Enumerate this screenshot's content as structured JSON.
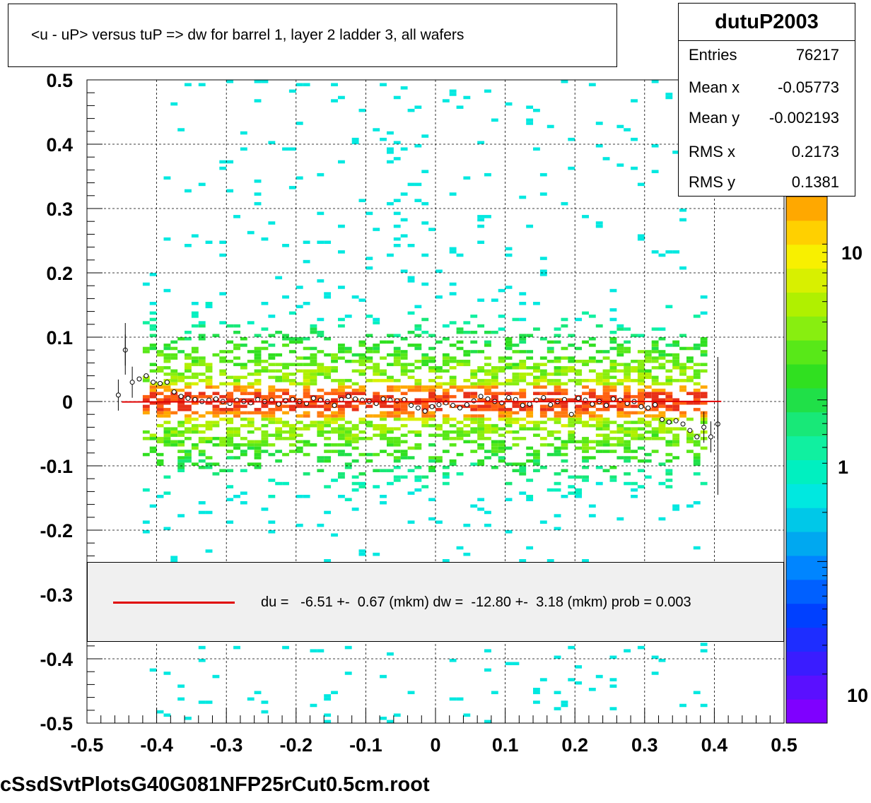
{
  "title": "<u - uP>       versus  tuP =>  dw for barrel 1, layer 2 ladder 3, all wafers",
  "stats": {
    "name": "dutuP2003",
    "rows": [
      {
        "label": "Entries",
        "value": "76217"
      },
      {
        "label": "Mean x",
        "value": "-0.05773"
      },
      {
        "label": "Mean y",
        "value": "-0.002193"
      },
      {
        "label": "RMS x",
        "value": "0.2173"
      },
      {
        "label": "RMS y",
        "value": "0.1381"
      }
    ]
  },
  "legend": {
    "text": "du =   -6.51 +-  0.67 (mkm) dw =  -12.80 +-  3.18 (mkm) prob = 0.003",
    "line_color": "#e00000"
  },
  "footer": "cSsdSvtPlotsG40G081NFP25rCut0.5cm.root",
  "colorbar": {
    "labels": [
      "10",
      "1",
      "10"
    ],
    "colors": [
      "#7f00ff",
      "#5a10ff",
      "#3a1cff",
      "#1e2dff",
      "#0040ff",
      "#0060ff",
      "#0085ff",
      "#00a8f0",
      "#00c8e8",
      "#00e8e0",
      "#00f0c0",
      "#10f0a0",
      "#18e878",
      "#20e048",
      "#30e020",
      "#58e818",
      "#88ee10",
      "#b0f000",
      "#d8f000",
      "#f8f000",
      "#ffd000",
      "#ffa800"
    ]
  },
  "chart_data": {
    "type": "heatmap",
    "x_axis": {
      "range": [
        -0.5,
        0.5
      ],
      "ticks": [
        "-0.5",
        "-0.4",
        "-0.3",
        "-0.2",
        "-0.1",
        "0",
        "0.1",
        "0.2",
        "0.3",
        "0.4",
        "0.5"
      ]
    },
    "y_axis": {
      "range": [
        -0.5,
        0.5
      ],
      "ticks": [
        "-0.5",
        "-0.4",
        "-0.3",
        "-0.2",
        "-0.1",
        "0",
        "0.1",
        "0.2",
        "0.3",
        "0.4",
        "0.5"
      ]
    },
    "z_scale": "log",
    "grid": true,
    "fit_line": {
      "x": [
        -0.45,
        0.41
      ],
      "y": [
        -0.0007,
        0.0002
      ],
      "color": "#e00000"
    },
    "profile_points": {
      "x": [
        -0.455,
        -0.445,
        -0.435,
        -0.425,
        -0.415,
        -0.405,
        -0.395,
        -0.385,
        -0.375,
        -0.365,
        -0.355,
        -0.345,
        -0.335,
        -0.325,
        -0.315,
        -0.305,
        -0.295,
        -0.285,
        -0.275,
        -0.265,
        -0.255,
        -0.245,
        -0.235,
        -0.225,
        -0.215,
        -0.205,
        -0.195,
        -0.185,
        -0.175,
        -0.165,
        -0.155,
        -0.145,
        -0.135,
        -0.125,
        -0.115,
        -0.105,
        -0.095,
        -0.085,
        -0.075,
        -0.065,
        -0.055,
        -0.045,
        -0.035,
        -0.025,
        -0.015,
        -0.005,
        0.005,
        0.015,
        0.025,
        0.035,
        0.045,
        0.055,
        0.065,
        0.075,
        0.085,
        0.095,
        0.105,
        0.115,
        0.125,
        0.135,
        0.145,
        0.155,
        0.165,
        0.175,
        0.185,
        0.195,
        0.205,
        0.215,
        0.225,
        0.235,
        0.245,
        0.255,
        0.265,
        0.275,
        0.285,
        0.295,
        0.305,
        0.315,
        0.325,
        0.335,
        0.345,
        0.355,
        0.365,
        0.375,
        0.385,
        0.395,
        0.405
      ],
      "y": [
        0.01,
        0.08,
        0.03,
        0.035,
        0.04,
        0.03,
        0.028,
        0.03,
        0.015,
        0.008,
        0.005,
        0.003,
        0.0,
        0.002,
        0.004,
        0.0,
        -0.003,
        0.002,
        0.0,
        -0.002,
        0.003,
        0.0,
        0.002,
        -0.004,
        0.001,
        0.003,
        0.0,
        -0.003,
        0.005,
        0.002,
        0.0,
        -0.006,
        0.003,
        0.008,
        0.004,
        0.002,
        0.0,
        -0.003,
        0.004,
        0.002,
        0.001,
        0.003,
        -0.006,
        -0.01,
        -0.015,
        -0.008,
        -0.005,
        -0.002,
        -0.006,
        -0.01,
        -0.005,
        0.001,
        0.008,
        0.004,
        0.0,
        -0.002,
        0.006,
        0.003,
        -0.006,
        -0.004,
        0.002,
        0.006,
        -0.005,
        0.0,
        0.003,
        -0.02,
        0.005,
        0.002,
        -0.004,
        0.0,
        -0.006,
        0.004,
        0.002,
        -0.003,
        0.0,
        -0.008,
        -0.01,
        -0.005,
        -0.028,
        -0.032,
        -0.03,
        -0.035,
        -0.045,
        -0.055,
        -0.04,
        -0.055,
        -0.035
      ]
    }
  }
}
